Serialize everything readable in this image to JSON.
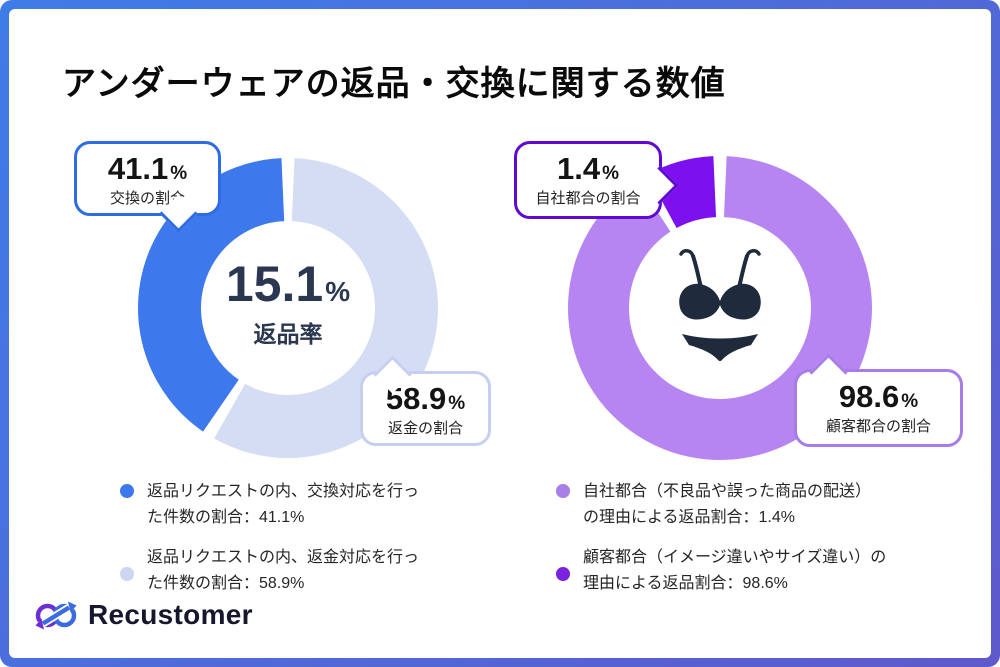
{
  "title": "アンダーウェアの返品・交換に関する数値",
  "frame": {
    "gradient_start": "#3f7ce8",
    "gradient_end": "#5f59cb"
  },
  "chart_data": [
    {
      "type": "pie",
      "variant": "donut",
      "name": "return-rate-donut",
      "center": {
        "value": "15.1",
        "unit": "%",
        "label": "返品率"
      },
      "slices": [
        {
          "label": "返金の割合",
          "value": 58.9,
          "color": "#d5ddf5",
          "start_deg": 2.5,
          "end_deg": 209.5
        },
        {
          "label": "交換の割合",
          "value": 41.1,
          "color": "#3e78ed",
          "start_deg": 214.5,
          "end_deg": 357.5
        }
      ],
      "callouts": [
        {
          "value": "41.1",
          "unit": "%",
          "label": "交換の割合",
          "border_color": "#2e6be4"
        },
        {
          "value": "58.9",
          "unit": "%",
          "label": "返金の割合",
          "border_color": "#c6cff2"
        }
      ]
    },
    {
      "type": "pie",
      "variant": "donut",
      "name": "return-reason-donut",
      "center_icon": "underwear-icon",
      "slices": [
        {
          "label": "顧客都合の割合",
          "value": 98.6,
          "color": "#b685f2",
          "start_deg": 2.5,
          "end_deg": 327.0
        },
        {
          "label": "自社都合の割合",
          "value": 1.4,
          "color": "#7c10ee",
          "start_deg": 331.5,
          "end_deg": 357.5
        }
      ],
      "callouts": [
        {
          "value": "1.4",
          "unit": "%",
          "label": "自社都合の割合",
          "border_color": "#5f0ad2"
        },
        {
          "value": "98.6",
          "unit": "%",
          "label": "顧客都合の割合",
          "border_color": "#a77ce8"
        }
      ]
    }
  ],
  "legend": {
    "left": [
      {
        "dot_color": "#3e78ed",
        "line1": "返品リクエストの内、交換対応を行っ",
        "line2": "た件数の割合：41.1%"
      },
      {
        "dot_color": "#ccd5f1",
        "line1": "返品リクエストの内、返金対応を行っ",
        "line2": "た件数の割合：58.9%"
      }
    ],
    "right": [
      {
        "dot_color": "#a87ee8",
        "line1": "自社都合（不良品や誤った商品の配送）",
        "line2": "の理由による返品割合：1.4%"
      },
      {
        "dot_color": "#7b22e0",
        "line1": "顧客都合（イメージ違いやサイズ違い）の",
        "line2": "理由による返品割合：98.6%"
      }
    ]
  },
  "brand": {
    "name": "Recustomer",
    "icon": "infinity-loop-icon",
    "icon_purple": "#6d2fd5",
    "icon_blue": "#3a6be0"
  }
}
